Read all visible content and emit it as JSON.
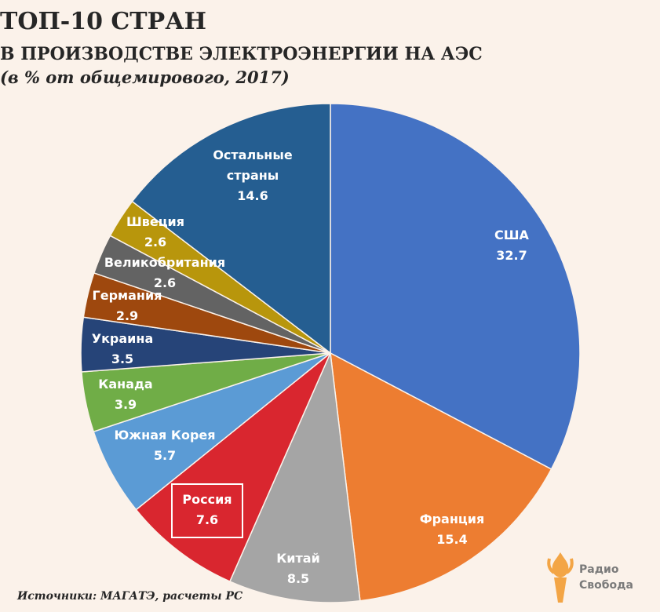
{
  "chart_data": {
    "type": "pie",
    "title": "ТОП-10 СТРАН",
    "subtitle": "В ПРОИЗВОДСТВЕ ЭЛЕКТРОЭНЕРГИИ НА АЭС",
    "subtitle2": "(в % от общемирового, 2017)",
    "slices": [
      {
        "label": "США",
        "value": 32.7,
        "color": "#4472c4",
        "text_color": "#ffffff"
      },
      {
        "label": "Франция",
        "value": 15.4,
        "color": "#ed7d31",
        "text_color": "#ffffff"
      },
      {
        "label": "Китай",
        "value": 8.5,
        "color": "#a5a5a5",
        "text_color": "#ffffff"
      },
      {
        "label": "Россия",
        "value": 7.6,
        "color": "#d9262f",
        "text_color": "#ffffff",
        "highlight": true
      },
      {
        "label": "Южная Корея",
        "value": 5.7,
        "color": "#5b9bd5",
        "text_color": "#ffffff"
      },
      {
        "label": "Канада",
        "value": 3.9,
        "color": "#70ad47",
        "text_color": "#ffffff"
      },
      {
        "label": "Украина",
        "value": 3.5,
        "color": "#264478",
        "text_color": "#ffffff"
      },
      {
        "label": "Германия",
        "value": 2.9,
        "color": "#9e480e",
        "text_color": "#ffffff"
      },
      {
        "label": "Великобритания",
        "value": 2.6,
        "color": "#636363",
        "text_color": "#ffffff"
      },
      {
        "label": "Швеция",
        "value": 2.6,
        "color": "#b8960c",
        "text_color": "#ffffff"
      },
      {
        "label": "Остальные страны",
        "value": 14.6,
        "color": "#255e91",
        "text_color": "#ffffff"
      }
    ]
  },
  "source": "Источники: МАГАТЭ, расчеты РС",
  "logo": {
    "line1": "Радио",
    "line2": "Свобода",
    "icon": "torch-icon"
  }
}
